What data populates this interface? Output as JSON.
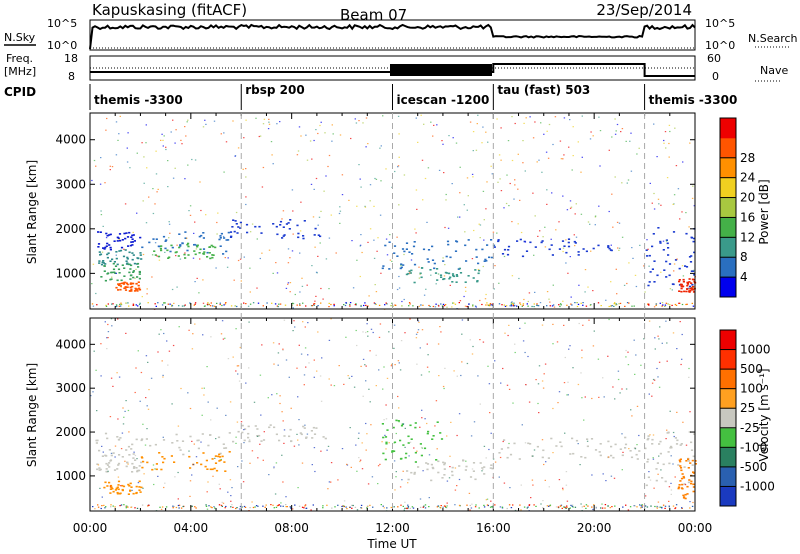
{
  "header": {
    "station": "Kapuskasing (fitACF)",
    "beam": "Beam 07",
    "date": "23/Sep/2014"
  },
  "noise_panel": {
    "left_label": "N.Sky",
    "right_label": "N.Search",
    "left_ticks": [
      "10^5",
      "10^0"
    ],
    "right_ticks": [
      "10^5",
      "10^0"
    ]
  },
  "freq_panel": {
    "left_label_1": "Freq.",
    "left_label_2": "[MHz]",
    "right_label": "Nave",
    "left_ticks": [
      "18",
      "8"
    ],
    "right_ticks": [
      "60",
      "0"
    ]
  },
  "cpid_panel": {
    "label": "CPID",
    "segments": [
      {
        "name": "themis -3300",
        "start_h": 0,
        "end_h": 6
      },
      {
        "name": "rbsp 200",
        "start_h": 6,
        "end_h": 12
      },
      {
        "name": "icescan -1200",
        "start_h": 12,
        "end_h": 16
      },
      {
        "name": "tau (fast) 503",
        "start_h": 16,
        "end_h": 22
      },
      {
        "name": "themis -3300",
        "start_h": 22,
        "end_h": 24
      }
    ]
  },
  "x_axis": {
    "label": "Time UT",
    "ticks": [
      "00:00",
      "04:00",
      "08:00",
      "12:00",
      "16:00",
      "20:00",
      "00:00"
    ],
    "range_h": [
      0,
      24
    ]
  },
  "chart_data": [
    {
      "type": "heatmap",
      "name_printed": "Power [dB]",
      "xlabel": "Time UT",
      "ylabel": "Slant Range [km]",
      "xlim_h": [
        0,
        24
      ],
      "ylim_km": [
        200,
        4600
      ],
      "y_ticks": [
        1000,
        2000,
        3000,
        4000
      ],
      "colorbar": {
        "label": "Power [dB]",
        "ticks": [
          "4",
          "8",
          "12",
          "16",
          "20",
          "24",
          "28"
        ],
        "colors": [
          "#0000ee",
          "#2a6fc0",
          "#3a9a8a",
          "#44b048",
          "#a8c840",
          "#f0d020",
          "#ff9000",
          "#ff5500",
          "#ee0000"
        ]
      },
      "scatter_regions": [
        {
          "t": [
            0.2,
            2.0
          ],
          "r": [
            1550,
            1950
          ],
          "color": "#0a18d0"
        },
        {
          "t": [
            0.3,
            2.0
          ],
          "r": [
            1200,
            1550
          ],
          "color": "#2d8a8a"
        },
        {
          "t": [
            0.3,
            2.0
          ],
          "r": [
            850,
            1250
          ],
          "color": "#3aa05a"
        },
        {
          "t": [
            1.0,
            2.0
          ],
          "r": [
            620,
            820
          ],
          "color": "#ff5500"
        },
        {
          "t": [
            2.0,
            5.5
          ],
          "r": [
            1450,
            1950
          ],
          "color": "#2a6fc0"
        },
        {
          "t": [
            2.5,
            5.0
          ],
          "r": [
            1350,
            1700
          ],
          "color": "#44b048"
        },
        {
          "t": [
            5.5,
            9.5
          ],
          "r": [
            1800,
            2250
          ],
          "color": "#1a3ad0"
        },
        {
          "t": [
            11.5,
            16.0
          ],
          "r": [
            1100,
            1800
          ],
          "color": "#2a6fc0"
        },
        {
          "t": [
            12.5,
            15.5
          ],
          "r": [
            800,
            1150
          ],
          "color": "#3a9a8a"
        },
        {
          "t": [
            16.0,
            21.0
          ],
          "r": [
            1400,
            1800
          ],
          "color": "#1a3ad0"
        },
        {
          "t": [
            22.0,
            24.0
          ],
          "r": [
            650,
            2100
          ],
          "color": "#1a3ad0"
        },
        {
          "t": [
            23.3,
            24.0
          ],
          "r": [
            600,
            900
          ],
          "color": "#ee2200"
        }
      ]
    },
    {
      "type": "heatmap",
      "name_printed": "Velocity [m s^-1]",
      "xlabel": "Time UT",
      "ylabel": "Slant Range [km]",
      "xlim_h": [
        0,
        24
      ],
      "ylim_km": [
        200,
        4600
      ],
      "y_ticks": [
        1000,
        2000,
        3000,
        4000
      ],
      "colorbar": {
        "label": "Velocity [m s⁻¹]",
        "ticks": [
          "1000",
          "500",
          "100",
          "25",
          "-25",
          "-100",
          "-500",
          "-1000"
        ],
        "colors": [
          "#1a3ac0",
          "#2a60b0",
          "#2a8060",
          "#44c040",
          "#c8c8c0",
          "#ffa020",
          "#ff7000",
          "#ff3000",
          "#ee0000"
        ]
      },
      "scatter_regions": [
        {
          "t": [
            0.2,
            5.5
          ],
          "r": [
            1500,
            2000
          ],
          "color": "#c8c8c0"
        },
        {
          "t": [
            0.2,
            2.0
          ],
          "r": [
            1100,
            1500
          ],
          "color": "#c8c8c0"
        },
        {
          "t": [
            2.0,
            5.5
          ],
          "r": [
            1100,
            1600
          ],
          "color": "#ff9000"
        },
        {
          "t": [
            0.5,
            2.0
          ],
          "r": [
            600,
            900
          ],
          "color": "#ff9000"
        },
        {
          "t": [
            5.5,
            9.5
          ],
          "r": [
            1800,
            2200
          ],
          "color": "#c8c8c0"
        },
        {
          "t": [
            11.5,
            14.0
          ],
          "r": [
            1300,
            2300
          ],
          "color": "#44c040"
        },
        {
          "t": [
            12.5,
            16.0
          ],
          "r": [
            900,
            1400
          ],
          "color": "#c8c8c0"
        },
        {
          "t": [
            16.0,
            22.0
          ],
          "r": [
            1400,
            1900
          ],
          "color": "#c8c8c0"
        },
        {
          "t": [
            22.0,
            24.0
          ],
          "r": [
            800,
            2100
          ],
          "color": "#c8c8c0"
        },
        {
          "t": [
            23.3,
            24.0
          ],
          "r": [
            500,
            1400
          ],
          "color": "#ff8000"
        }
      ]
    }
  ]
}
